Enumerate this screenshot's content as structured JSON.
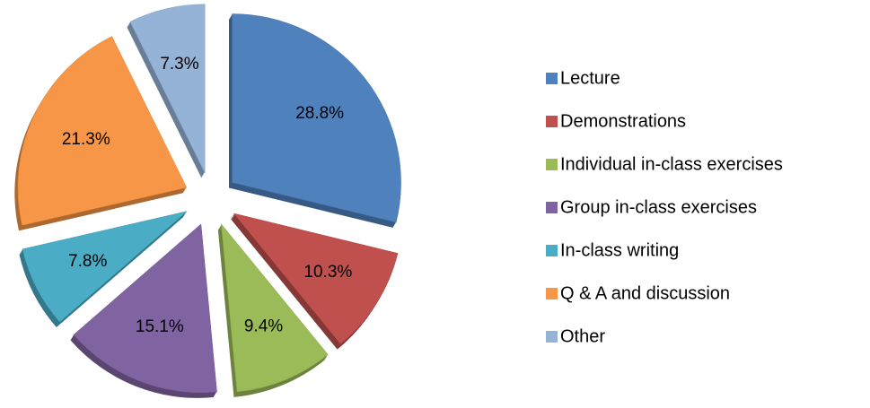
{
  "chart_data": {
    "type": "pie",
    "categories": [
      "Lecture",
      "Demonstrations",
      "Individual in-class exercises",
      "Group in-class exercises",
      "In-class writing",
      "Q & A and discussion",
      "Other"
    ],
    "values": [
      28.8,
      10.3,
      9.4,
      15.1,
      7.8,
      21.3,
      7.3
    ],
    "value_labels": [
      "28.8%",
      "10.3%",
      "9.4%",
      "15.1%",
      "7.8%",
      "21.3%",
      "7.3%"
    ],
    "colors": [
      "#4f81bd",
      "#c0504d",
      "#9bbb59",
      "#8064a2",
      "#4bacc6",
      "#f79646",
      "#95b3d7"
    ],
    "legend": "right"
  }
}
